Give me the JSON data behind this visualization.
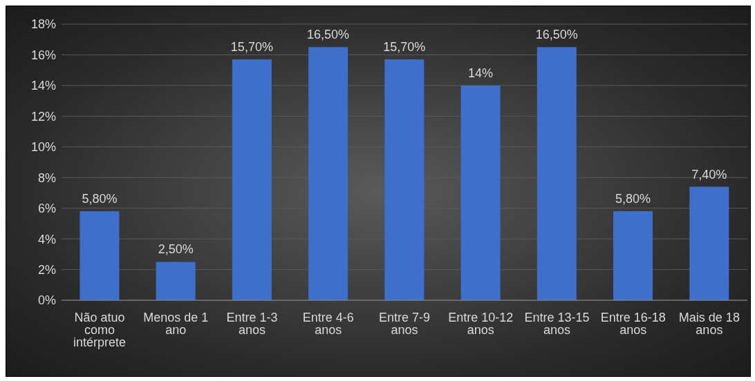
{
  "chart_data": {
    "type": "bar",
    "categories": [
      "Não atuo como intérprete",
      "Menos de 1 ano",
      "Entre 1-3 anos",
      "Entre 4-6 anos",
      "Entre 7-9 anos",
      "Entre 10-12 anos",
      "Entre 13-15 anos",
      "Entre 16-18 anos",
      "Mais de 18 anos"
    ],
    "values": [
      5.8,
      2.5,
      15.7,
      16.5,
      15.7,
      14,
      16.5,
      5.8,
      7.4
    ],
    "value_labels": [
      "5,80%",
      "2,50%",
      "15,70%",
      "16,50%",
      "15,70%",
      "14%",
      "16,50%",
      "5,80%",
      "7,40%"
    ],
    "color": "#3f6fcc",
    "ylim": [
      0,
      18
    ],
    "yticks": [
      {
        "value": 0,
        "label": "0%"
      },
      {
        "value": 2,
        "label": "2%"
      },
      {
        "value": 4,
        "label": "4%"
      },
      {
        "value": 6,
        "label": "6%"
      },
      {
        "value": 8,
        "label": "8%"
      },
      {
        "value": 10,
        "label": "10%"
      },
      {
        "value": 12,
        "label": "12%"
      },
      {
        "value": 14,
        "label": "14%"
      },
      {
        "value": 16,
        "label": "16%"
      },
      {
        "value": 18,
        "label": "18%"
      }
    ],
    "grid": "y",
    "legend": false
  }
}
